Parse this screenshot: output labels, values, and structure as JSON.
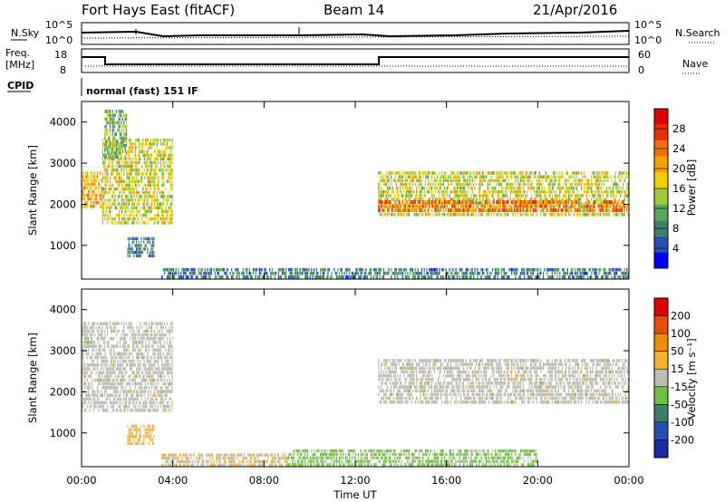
{
  "header": {
    "title": "Fort Hays East (fitACF)",
    "beam": "Beam 14",
    "date": "21/Apr/2016"
  },
  "status_panels": {
    "nsky_label": "N.Sky",
    "nsky_ticks": [
      "10^5",
      "10^0"
    ],
    "nsearch_label": "N.Search",
    "nsearch_ticks": [
      "10^5",
      "10^0"
    ],
    "freq_label_1": "Freq.",
    "freq_label_2": "[MHz]",
    "freq_ticks": [
      "18",
      "8"
    ],
    "nave_label": "Nave",
    "nave_ticks": [
      "60",
      "0"
    ],
    "cpid_label": "CPID",
    "cpid_value": "normal (fast) 151 IF"
  },
  "chart_data": [
    {
      "type": "heatmap",
      "panel": "power",
      "ylabel": "Slant Range [km]",
      "ylim": [
        180,
        4500
      ],
      "yticks": [
        "4000",
        "3000",
        "2000",
        "1000"
      ],
      "colorbar": {
        "label": "Power [dB]",
        "ticks": [
          "28",
          "24",
          "20",
          "16",
          "12",
          "8",
          "4"
        ],
        "colors": [
          "#0000ff",
          "#2a4fb0",
          "#3b7f6a",
          "#57a85a",
          "#9ccc3c",
          "#f0d000",
          "#f5a000",
          "#f07000",
          "#e83000",
          "#e00000"
        ]
      },
      "regions": [
        {
          "t0": 0.0,
          "t1": 0.9,
          "r0": 1900,
          "r1": 2800,
          "value": 20
        },
        {
          "t0": 0.9,
          "t1": 4.0,
          "r0": 1500,
          "r1": 3600,
          "value": 16
        },
        {
          "t0": 2.0,
          "t1": 3.2,
          "r0": 700,
          "r1": 1200,
          "value": 8
        },
        {
          "t0": 1.0,
          "t1": 2.0,
          "r0": 3100,
          "r1": 4300,
          "value": 12
        },
        {
          "t0": 13.0,
          "t1": 24.0,
          "r0": 1700,
          "r1": 2800,
          "value": 16
        },
        {
          "t0": 13.0,
          "t1": 24.0,
          "r0": 1800,
          "r1": 2100,
          "value": 24
        },
        {
          "t0": 3.5,
          "t1": 24.0,
          "r0": 180,
          "r1": 450,
          "value": 8
        }
      ]
    },
    {
      "type": "heatmap",
      "panel": "velocity",
      "xlabel": "Time UT",
      "ylabel": "Slant Range [km]",
      "ylim": [
        180,
        4500
      ],
      "yticks": [
        "4000",
        "3000",
        "2000",
        "1000"
      ],
      "xticks": [
        "00:00",
        "04:00",
        "08:00",
        "12:00",
        "16:00",
        "20:00",
        "00:00"
      ],
      "colorbar": {
        "label": "Velocity [m s⁻¹]",
        "ticks": [
          "200",
          "100",
          "50",
          "15",
          "-15",
          "-50",
          "-100",
          "-200"
        ],
        "colors": [
          "#1a2aa0",
          "#2a4fb0",
          "#3b7f6a",
          "#6fc040",
          "#bdbdb5",
          "#f5b030",
          "#f08a00",
          "#e85000",
          "#e00000"
        ]
      },
      "regions": [
        {
          "t0": 0.0,
          "t1": 4.0,
          "r0": 1500,
          "r1": 3700,
          "value": 0
        },
        {
          "t0": 2.0,
          "t1": 3.2,
          "r0": 700,
          "r1": 1200,
          "value": 40
        },
        {
          "t0": 13.0,
          "t1": 24.0,
          "r0": 1700,
          "r1": 2800,
          "value": 0
        },
        {
          "t0": 9.0,
          "t1": 20.0,
          "r0": 180,
          "r1": 600,
          "value": -40
        },
        {
          "t0": 3.5,
          "t1": 9.0,
          "r0": 180,
          "r1": 500,
          "value": 20
        }
      ]
    }
  ]
}
